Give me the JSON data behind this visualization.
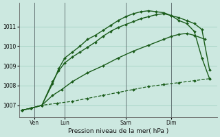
{
  "title": "Pression niveau de la mer( hPa )",
  "bg_color": "#cce8e0",
  "grid_color": "#99ccbb",
  "line_color": "#1a5c1a",
  "ylim": [
    1006.4,
    1012.2
  ],
  "yticks": [
    1007,
    1008,
    1009,
    1010,
    1011
  ],
  "x_day_labels": [
    {
      "label": "Ven",
      "x": 1
    },
    {
      "label": "Lun",
      "x": 3
    },
    {
      "label": "Sam",
      "x": 7
    },
    {
      "label": "Dim",
      "x": 10
    }
  ],
  "vlines_x": [
    1,
    3,
    7,
    10
  ],
  "vline_color": "#667777",
  "xlim": [
    0,
    13
  ],
  "series": [
    {
      "x": [
        0.2,
        0.8,
        1.5,
        2.5,
        3.5,
        4.5,
        5.5,
        6.5,
        7.5,
        8.5,
        9.5,
        10.5,
        11.5,
        12.5
      ],
      "y": [
        1006.75,
        1006.85,
        1007.0,
        1007.1,
        1007.2,
        1007.35,
        1007.5,
        1007.65,
        1007.8,
        1007.95,
        1008.05,
        1008.15,
        1008.25,
        1008.35
      ],
      "linestyle": "--",
      "linewidth": 0.9,
      "markersize": 2.0
    },
    {
      "x": [
        0.2,
        0.8,
        1.5,
        2.2,
        2.8,
        3.5,
        4.5,
        5.5,
        6.5,
        7.5,
        8.5,
        9.5,
        10.0,
        10.5,
        11.0,
        11.5,
        12.2
      ],
      "y": [
        1006.75,
        1006.85,
        1007.0,
        1007.5,
        1007.8,
        1008.2,
        1008.65,
        1009.0,
        1009.4,
        1009.75,
        1010.05,
        1010.35,
        1010.5,
        1010.6,
        1010.65,
        1010.55,
        1010.35
      ],
      "linestyle": "-",
      "linewidth": 1.0,
      "markersize": 2.0
    },
    {
      "x": [
        0.2,
        0.8,
        1.5,
        2.2,
        2.6,
        3.0,
        3.5,
        4.0,
        4.5,
        5.0,
        5.5,
        6.0,
        6.5,
        7.0,
        7.5,
        8.0,
        8.5,
        9.0,
        9.5,
        10.0,
        10.5,
        11.0,
        11.5,
        12.0,
        12.5
      ],
      "y": [
        1006.75,
        1006.85,
        1007.0,
        1008.2,
        1008.75,
        1009.15,
        1009.45,
        1009.7,
        1009.95,
        1010.2,
        1010.5,
        1010.75,
        1010.95,
        1011.1,
        1011.25,
        1011.4,
        1011.5,
        1011.6,
        1011.65,
        1011.55,
        1011.45,
        1011.3,
        1011.15,
        1010.85,
        1008.8
      ],
      "linestyle": "-",
      "linewidth": 1.0,
      "markersize": 2.0
    },
    {
      "x": [
        0.2,
        0.8,
        1.5,
        2.2,
        2.6,
        3.0,
        3.5,
        4.0,
        4.5,
        5.0,
        5.5,
        6.0,
        6.5,
        7.0,
        7.5,
        8.0,
        8.5,
        9.0,
        9.5,
        10.0,
        10.5,
        11.0,
        11.5,
        12.0,
        12.5
      ],
      "y": [
        1006.75,
        1006.85,
        1007.0,
        1008.1,
        1008.85,
        1009.4,
        1009.7,
        1010.0,
        1010.35,
        1010.55,
        1010.8,
        1011.05,
        1011.3,
        1011.5,
        1011.65,
        1011.75,
        1011.8,
        1011.75,
        1011.7,
        1011.55,
        1011.3,
        1011.15,
        1010.75,
        1009.4,
        1008.35
      ],
      "linestyle": "-",
      "linewidth": 1.0,
      "markersize": 2.0
    }
  ]
}
